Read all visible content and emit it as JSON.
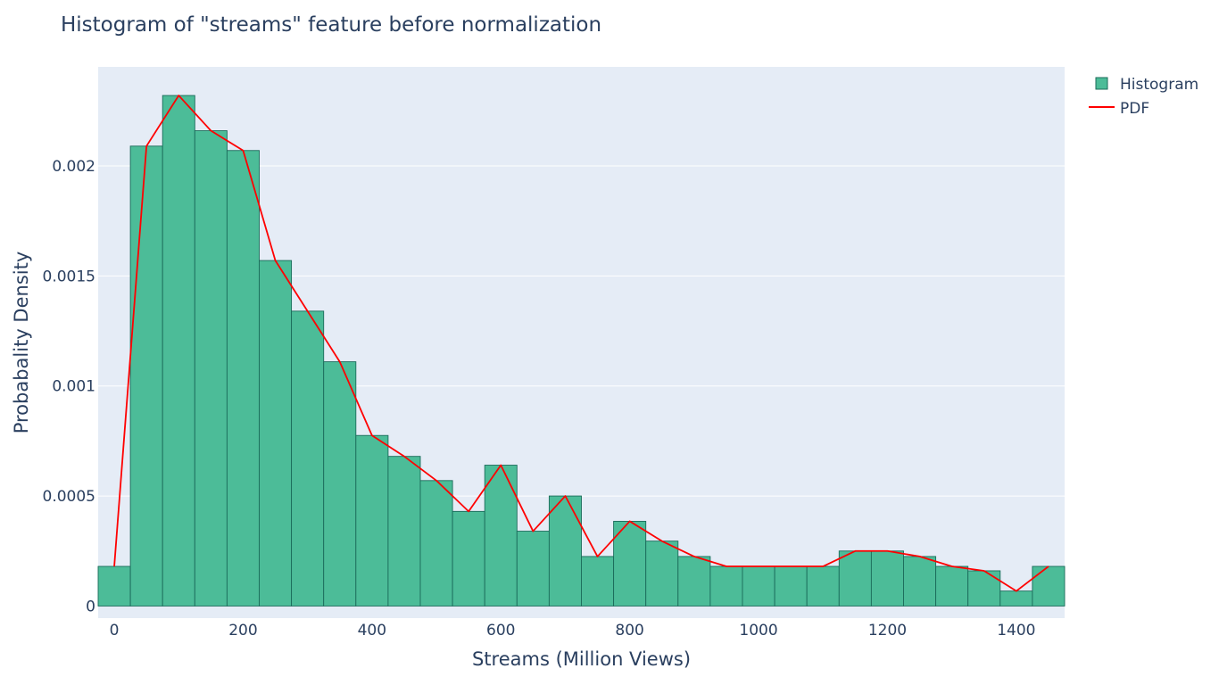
{
  "chart_data": {
    "type": "bar",
    "title": "Histogram of \"streams\" feature before normalization",
    "xlabel": "Streams (Million Views)",
    "ylabel": "Probabality Density",
    "bin_width": 50,
    "xlim": [
      -25,
      1475
    ],
    "ylim": [
      -5.5e-05,
      0.00245
    ],
    "grid": true,
    "legend_position": "top-right",
    "x_ticks": [
      0,
      200,
      400,
      600,
      800,
      1000,
      1200,
      1400
    ],
    "x_tick_labels": [
      "0",
      "200",
      "400",
      "600",
      "800",
      "1000",
      "1200",
      "1400"
    ],
    "y_ticks": [
      0,
      0.0005,
      0.001,
      0.0015,
      0.002
    ],
    "y_tick_labels": [
      "0",
      "0.0005",
      "0.001",
      "0.0015",
      "0.002"
    ],
    "x": [
      0,
      50,
      100,
      150,
      200,
      250,
      300,
      350,
      400,
      450,
      500,
      550,
      600,
      650,
      700,
      750,
      800,
      850,
      900,
      950,
      1000,
      1050,
      1100,
      1150,
      1200,
      1250,
      1300,
      1350,
      1400,
      1450
    ],
    "series": [
      {
        "name": "Histogram",
        "type": "bar",
        "values": [
          0.00018,
          0.00209,
          0.00232,
          0.00216,
          0.00207,
          0.00157,
          0.00134,
          0.00111,
          0.000775,
          0.00068,
          0.00057,
          0.00043,
          0.00064,
          0.00034,
          0.0005,
          0.000225,
          0.000385,
          0.000295,
          0.000225,
          0.00018,
          0.00018,
          0.00018,
          0.00018,
          0.00025,
          0.00025,
          0.000225,
          0.00018,
          0.00016,
          6.8e-05,
          0.00018
        ]
      },
      {
        "name": "PDF",
        "type": "line",
        "values": [
          0.00018,
          0.00209,
          0.00232,
          0.00216,
          0.00207,
          0.00157,
          0.00134,
          0.00111,
          0.000775,
          0.00068,
          0.00057,
          0.00043,
          0.00064,
          0.00034,
          0.0005,
          0.000225,
          0.000385,
          0.000295,
          0.000225,
          0.00018,
          0.00018,
          0.00018,
          0.00018,
          0.00025,
          0.00025,
          0.000225,
          0.00018,
          0.00016,
          6.8e-05,
          0.00018
        ]
      }
    ],
    "colors": {
      "bar_fill": "#4cbc98",
      "bar_stroke": "#1b6b5a",
      "line": "#ff0000",
      "plot_bg": "#e5ecf6",
      "grid": "#ffffff",
      "text": "#2a3f5f"
    }
  }
}
